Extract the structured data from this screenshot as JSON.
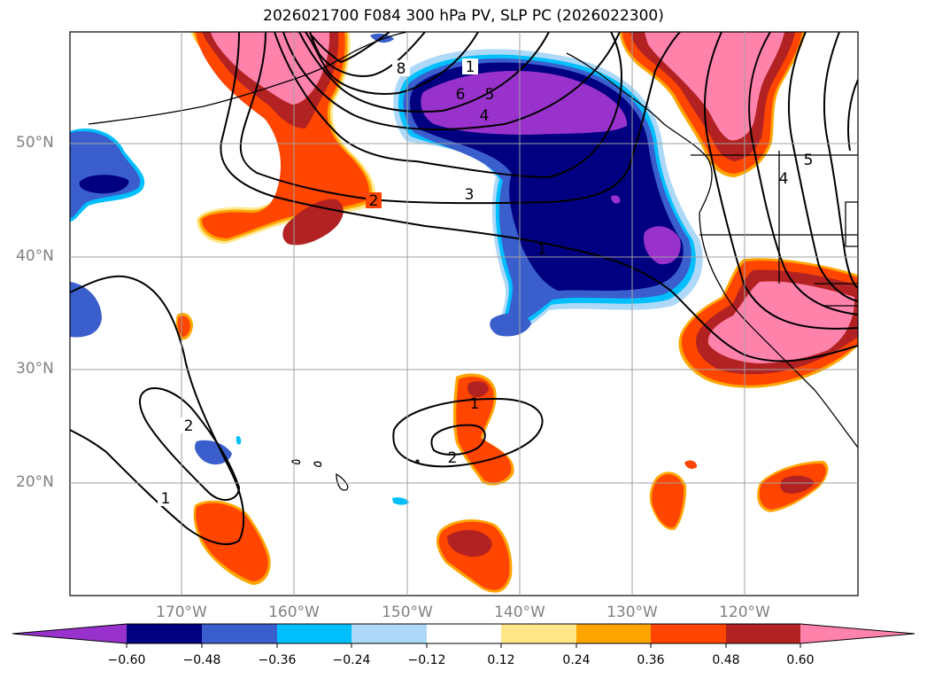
{
  "title": "2026021700 F084 300 hPa PV, SLP PC (2026022300)",
  "latitude_labels": [
    "50°N",
    "40°N",
    "30°N",
    "20°N"
  ],
  "longitude_labels": [
    "170°W",
    "160°W",
    "150°W",
    "140°W",
    "130°W",
    "120°W"
  ],
  "colorbar": {
    "ticks": [
      "−0.60",
      "−0.48",
      "−0.36",
      "−0.24",
      "−0.12",
      "0.12",
      "0.24",
      "0.36",
      "0.48",
      "0.60"
    ],
    "colors": [
      "#9932CC",
      "#000080",
      "#3A5FCD",
      "#00BFFF",
      "#ADD8F7",
      "#FFFFFF",
      "#FFE78A",
      "#FFA500",
      "#FF4500",
      "#B22222",
      "#FF82AB"
    ]
  },
  "contour_labels": [
    "8",
    "1",
    "6",
    "5",
    "4",
    "2",
    "3",
    "1",
    "5",
    "4",
    "2",
    "1",
    "1",
    "2"
  ],
  "colors": {
    "purple": "#9932CC",
    "navy": "#000080",
    "royal": "#3A5FCD",
    "sky": "#00BFFF",
    "orangered": "#FF4500",
    "firebrick": "#B22222",
    "pink": "#FF82AB",
    "orange": "#FFA500",
    "yellow": "#FFE78A"
  }
}
